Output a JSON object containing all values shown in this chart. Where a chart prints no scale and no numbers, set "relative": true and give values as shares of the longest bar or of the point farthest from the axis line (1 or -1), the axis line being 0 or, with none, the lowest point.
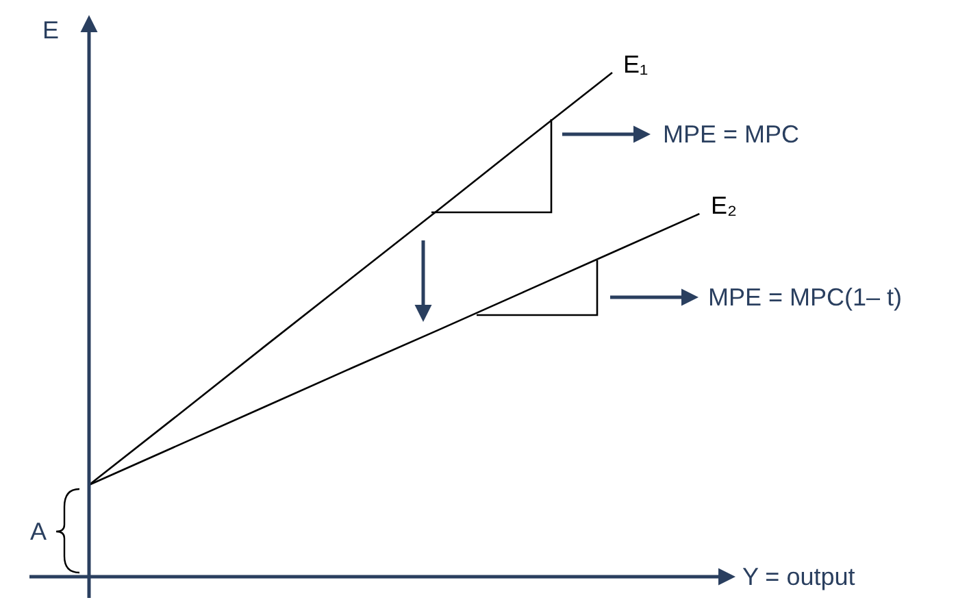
{
  "chart_data": {
    "type": "line",
    "relative": true,
    "xlabel": "Y = output",
    "ylabel": "E",
    "categories": [
      null,
      null,
      null,
      null,
      null,
      null,
      null,
      null
    ],
    "series": [
      {
        "name": "E₁",
        "color": "#000000",
        "values": [
          0.182,
          0.318,
          0.455,
          0.591,
          0.727,
          0.864,
          1.0,
          null
        ]
      },
      {
        "name": "E₂",
        "color": "#000000",
        "values": [
          0.182,
          0.259,
          0.336,
          0.413,
          0.489,
          0.566,
          0.643,
          0.72
        ]
      }
    ],
    "annotations": [
      "A",
      "MPE = MPC",
      "MPE = MPC(1– t)"
    ],
    "marker": "none",
    "line_style": "solid",
    "legend": false
  }
}
